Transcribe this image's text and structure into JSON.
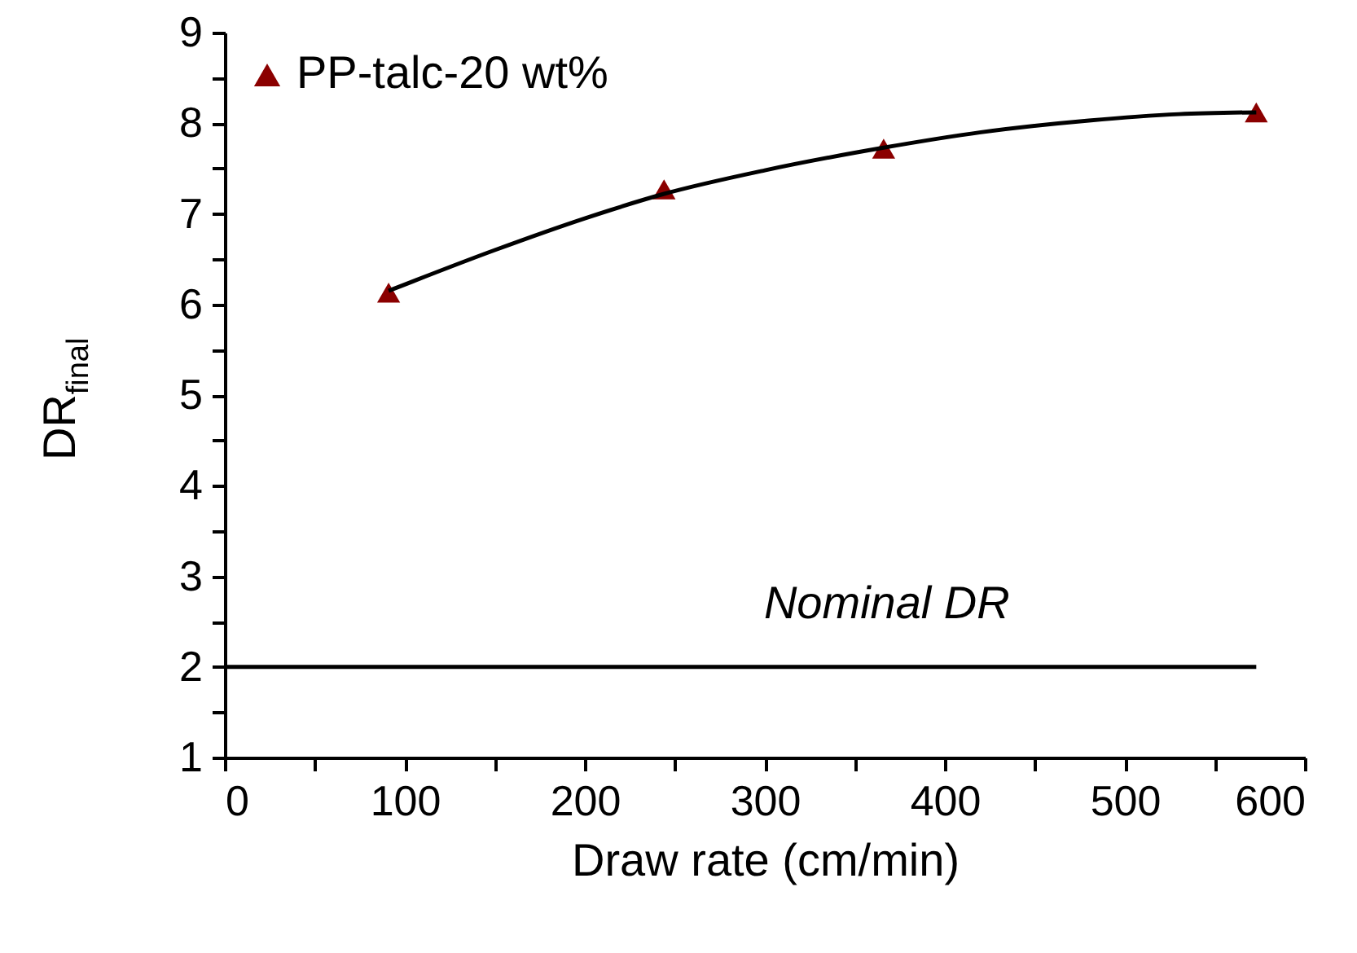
{
  "chart_data": {
    "type": "scatter",
    "xlabel": "Draw rate (cm/min)",
    "ylabel": "DR$_{final}$",
    "x": [
      91,
      244,
      366,
      573
    ],
    "series": [
      {
        "name": "PP-talc-20 wt%",
        "color": "#8b0000",
        "values": [
          6.13,
          7.27,
          7.72,
          8.12
        ],
        "marker": "triangle"
      },
      {
        "type": "line",
        "color": "#000000",
        "x": [
          91,
          150,
          200,
          244,
          300,
          366,
          420,
          480,
          530,
          573
        ],
        "values": [
          6.15,
          6.6,
          6.95,
          7.22,
          7.48,
          7.73,
          7.9,
          8.03,
          8.1,
          8.12
        ]
      },
      {
        "type": "line",
        "color": "#000000",
        "x": [
          0,
          573
        ],
        "values": [
          2,
          2
        ]
      }
    ],
    "annotations": [
      "Nominal DR"
    ],
    "xlim": [
      0,
      600
    ],
    "ylim": [
      1,
      9
    ],
    "xticks": [
      0,
      {
        "value": 50,
        "label": null
      },
      100,
      {
        "value": 150,
        "label": null
      },
      200,
      {
        "value": 250,
        "label": null
      },
      300,
      {
        "value": 350,
        "label": null
      },
      400,
      {
        "value": 450,
        "label": null
      },
      500,
      {
        "value": 550,
        "label": null
      },
      600
    ],
    "yticks": [
      1,
      {
        "value": 1.5,
        "label": null
      },
      2,
      {
        "value": 2.5,
        "label": null
      },
      3,
      {
        "value": 3.5,
        "label": null
      },
      4,
      {
        "value": 4.5,
        "label": null
      },
      5,
      {
        "value": 5.5,
        "label": null
      },
      6,
      {
        "value": 6.5,
        "label": null
      },
      7,
      {
        "value": 7.5,
        "label": null
      },
      8,
      {
        "value": 8.5,
        "label": null
      },
      9
    ],
    "grid": false,
    "legend": "top left"
  }
}
